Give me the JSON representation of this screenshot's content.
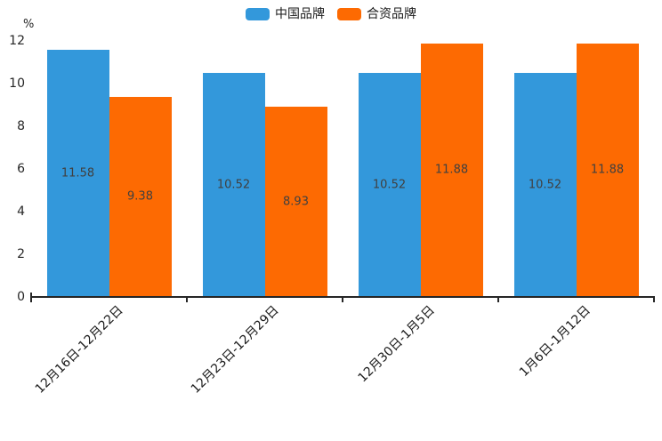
{
  "chart_data": {
    "type": "bar",
    "title": "",
    "categories": [
      "12月16日-12月22日",
      "12月23日-12月29日",
      "12月30日-1月5日",
      "1月6日-1月12日"
    ],
    "series": [
      {
        "name": "中国品牌",
        "color": "#3398db",
        "values": [
          11.58,
          10.52,
          10.52,
          10.52
        ]
      },
      {
        "name": "合资品牌",
        "color": "#fd6a02",
        "values": [
          9.38,
          8.93,
          11.88,
          11.88
        ]
      }
    ],
    "xlabel": "",
    "ylabel": "%",
    "ylim": [
      0,
      12
    ],
    "ytick_step": 2,
    "ytick_labels": [
      "0",
      "2",
      "4",
      "6",
      "8",
      "10",
      "12"
    ],
    "grid": false,
    "legend_position": "top-center",
    "value_labels": "inside-center",
    "value_label_format": "2-decimals",
    "xtick_rotation": -45
  },
  "colors": {
    "background": "#ffffff",
    "axis": "#262626",
    "value_label": "#404040",
    "tick_text": "#262626",
    "legend_text": "#1a1a1a"
  }
}
